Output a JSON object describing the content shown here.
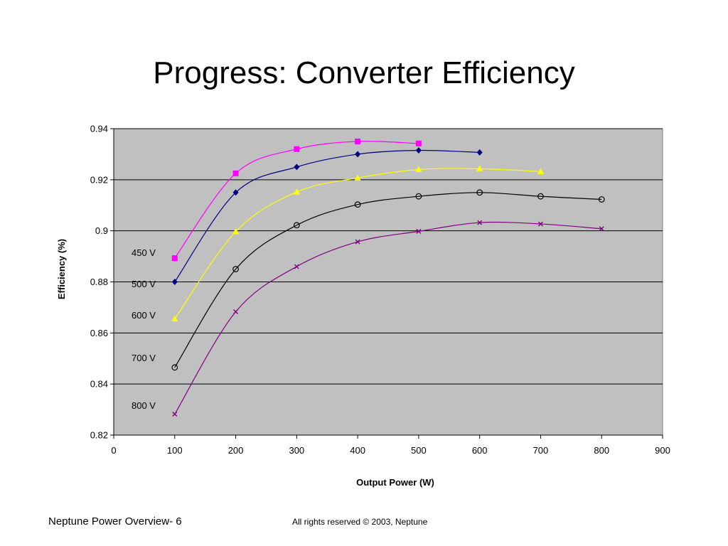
{
  "slide": {
    "title": "Progress: Converter Efficiency",
    "footer_left": "Neptune Power  Overview- 6",
    "footer_right": "All rights reserved © 2003, Neptune"
  },
  "chart_data": {
    "type": "line",
    "title": "",
    "xlabel": "Output Power (W)",
    "ylabel": "Efficiency (%)",
    "xlim": [
      0,
      900
    ],
    "ylim": [
      0.82,
      0.94
    ],
    "x_ticks": [
      0,
      100,
      200,
      300,
      400,
      500,
      600,
      700,
      800,
      900
    ],
    "y_ticks": [
      0.82,
      0.84,
      0.86,
      0.88,
      0.9,
      0.92,
      0.94
    ],
    "x_tick_labels": [
      "0",
      "100",
      "200",
      "300",
      "400",
      "500",
      "600",
      "700",
      "800",
      "900"
    ],
    "y_tick_labels": [
      "0.82",
      "0.84",
      "0.86",
      "0.88",
      "0.9",
      "0.92",
      "0.94"
    ],
    "grid": "horizontal",
    "plot_background": "#c0c0c0",
    "legend": "labels inside plot, left",
    "series": [
      {
        "name": "450 V",
        "color": "#ff00ff",
        "marker": "square",
        "x": [
          100,
          200,
          300,
          400,
          500
        ],
        "y": [
          0.8893,
          0.9225,
          0.932,
          0.935,
          0.9342
        ]
      },
      {
        "name": "500 V",
        "color": "#000080",
        "marker": "diamond",
        "x": [
          100,
          200,
          300,
          400,
          500,
          600
        ],
        "y": [
          0.88,
          0.915,
          0.925,
          0.93,
          0.9315,
          0.9307
        ]
      },
      {
        "name": "600 V",
        "color": "#ffff00",
        "marker": "triangle",
        "x": [
          100,
          200,
          300,
          400,
          500,
          600,
          700
        ],
        "y": [
          0.8655,
          0.8997,
          0.9152,
          0.9207,
          0.924,
          0.9243,
          0.9232
        ]
      },
      {
        "name": "700 V",
        "color": "#000000",
        "marker": "circle",
        "x": [
          100,
          200,
          300,
          400,
          500,
          600,
          700,
          800
        ],
        "y": [
          0.8465,
          0.885,
          0.9022,
          0.9103,
          0.9135,
          0.915,
          0.9135,
          0.9123
        ]
      },
      {
        "name": "800 V",
        "color": "#800080",
        "marker": "x",
        "x": [
          100,
          200,
          300,
          400,
          500,
          600,
          700,
          800
        ],
        "y": [
          0.8282,
          0.8683,
          0.886,
          0.8957,
          0.8998,
          0.9032,
          0.9027,
          0.9008
        ]
      }
    ]
  }
}
